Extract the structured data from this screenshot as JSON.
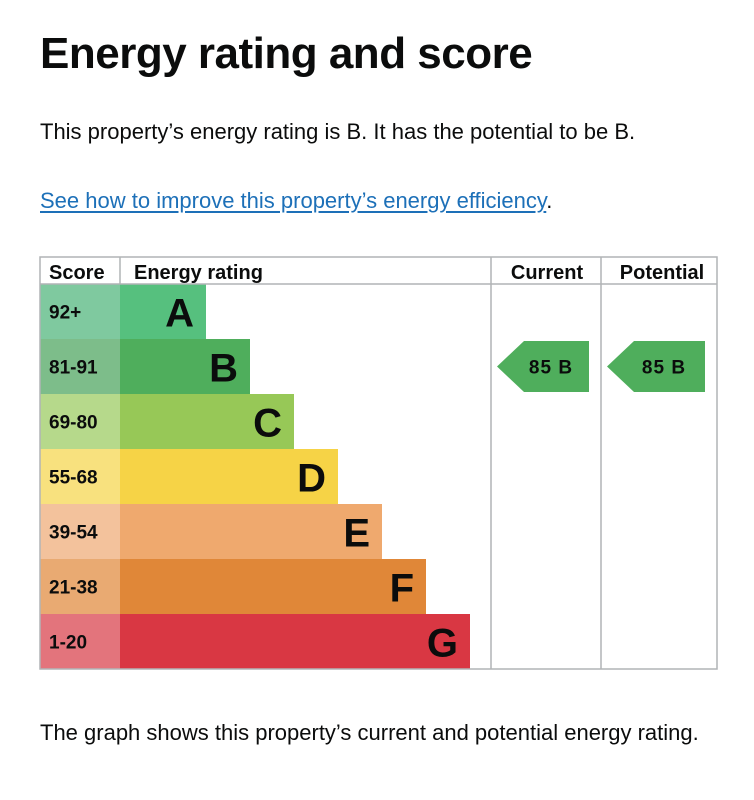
{
  "page": {
    "title": "Energy rating and score",
    "intro": "This property’s energy rating is B. It has the potential to be B.",
    "link_text": "See how to improve this property’s energy efficiency",
    "link_suffix": ".",
    "footer": "The graph shows this property’s current and potential energy rating."
  },
  "chart_data": {
    "type": "bar",
    "headers": {
      "score": "Score",
      "rating": "Energy rating",
      "current": "Current",
      "potential": "Potential"
    },
    "bands": [
      {
        "score": "92+",
        "letter": "A",
        "color": "#56c07e",
        "score_color": "#7fc99f"
      },
      {
        "score": "81-91",
        "letter": "B",
        "color": "#4fae5c",
        "score_color": "#7dbd8a"
      },
      {
        "score": "69-80",
        "letter": "C",
        "color": "#97c857",
        "score_color": "#b6d98b"
      },
      {
        "score": "55-68",
        "letter": "D",
        "color": "#f6d346",
        "score_color": "#f8e17e"
      },
      {
        "score": "39-54",
        "letter": "E",
        "color": "#efa96e",
        "score_color": "#f3c29c"
      },
      {
        "score": "21-38",
        "letter": "F",
        "color": "#e08738",
        "score_color": "#e9aa72"
      },
      {
        "score": "1-20",
        "letter": "G",
        "color": "#d93743",
        "score_color": "#e3747c"
      }
    ],
    "current": {
      "value": 85,
      "letter": "B",
      "label": "85 B",
      "color": "#4fae5c"
    },
    "potential": {
      "value": 85,
      "letter": "B",
      "label": "85 B",
      "color": "#4fae5c"
    }
  }
}
